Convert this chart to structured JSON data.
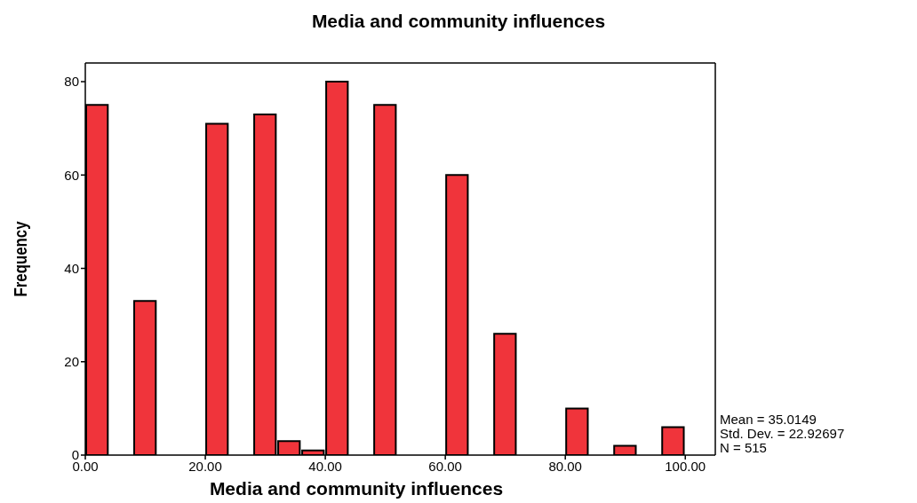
{
  "chart_data": {
    "type": "histogram",
    "title": "Media and community influences",
    "xlabel": "Media and community influences",
    "ylabel": "Frequency",
    "bins": [
      0,
      4,
      8,
      12,
      16,
      20,
      24,
      28,
      32,
      36,
      40,
      44,
      48,
      52,
      56,
      60,
      64,
      68,
      72,
      76,
      80,
      84,
      88,
      92,
      96,
      100
    ],
    "values": [
      75,
      0,
      33,
      0,
      0,
      71,
      0,
      73,
      3,
      1,
      80,
      0,
      75,
      0,
      0,
      60,
      0,
      26,
      0,
      0,
      10,
      0,
      2,
      0,
      6
    ],
    "color": "#f0343b",
    "xlim": [
      0,
      105
    ],
    "ylim": [
      0,
      84
    ],
    "xticks": [
      {
        "value": 0,
        "label": "0.00"
      },
      {
        "value": 20,
        "label": "20.00"
      },
      {
        "value": 40,
        "label": "40.00"
      },
      {
        "value": 60,
        "label": "60.00"
      },
      {
        "value": 80,
        "label": "80.00"
      },
      {
        "value": 100,
        "label": "100.00"
      }
    ],
    "yticks": [
      0,
      20,
      40,
      60,
      80
    ],
    "annotations": [
      "Mean = 35.0149",
      "Std. Dev. = 22.92697",
      "N = 515"
    ]
  }
}
